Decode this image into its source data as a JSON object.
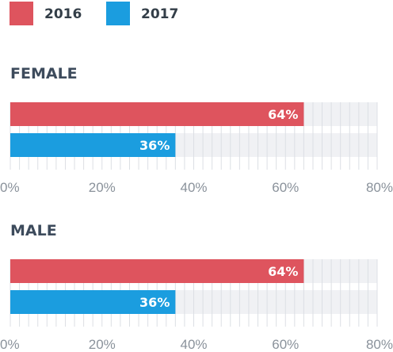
{
  "chart_data": {
    "type": "bar",
    "orientation": "horizontal",
    "legend": {
      "placement": "top-left",
      "items": [
        {
          "name": "2016",
          "color": "#de545e"
        },
        {
          "name": "2017",
          "color": "#1b9ddf"
        }
      ]
    },
    "xlim": [
      0,
      80
    ],
    "x_ticks": [
      "0%",
      "20%",
      "40%",
      "60%",
      "80%"
    ],
    "grid": true,
    "panels": [
      {
        "title": "FEMALE",
        "series": [
          {
            "name": "2016",
            "value": 64,
            "label": "64%"
          },
          {
            "name": "2017",
            "value": 36,
            "label": "36%"
          }
        ]
      },
      {
        "title": "MALE",
        "series": [
          {
            "name": "2016",
            "value": 64,
            "label": "64%"
          },
          {
            "name": "2017",
            "value": 36,
            "label": "36%"
          }
        ]
      }
    ],
    "colors": {
      "track": "#f0f1f4",
      "grid": "#dcdfe4",
      "tick_text": "#8a929b",
      "title_text": "#3d4b5c"
    }
  }
}
